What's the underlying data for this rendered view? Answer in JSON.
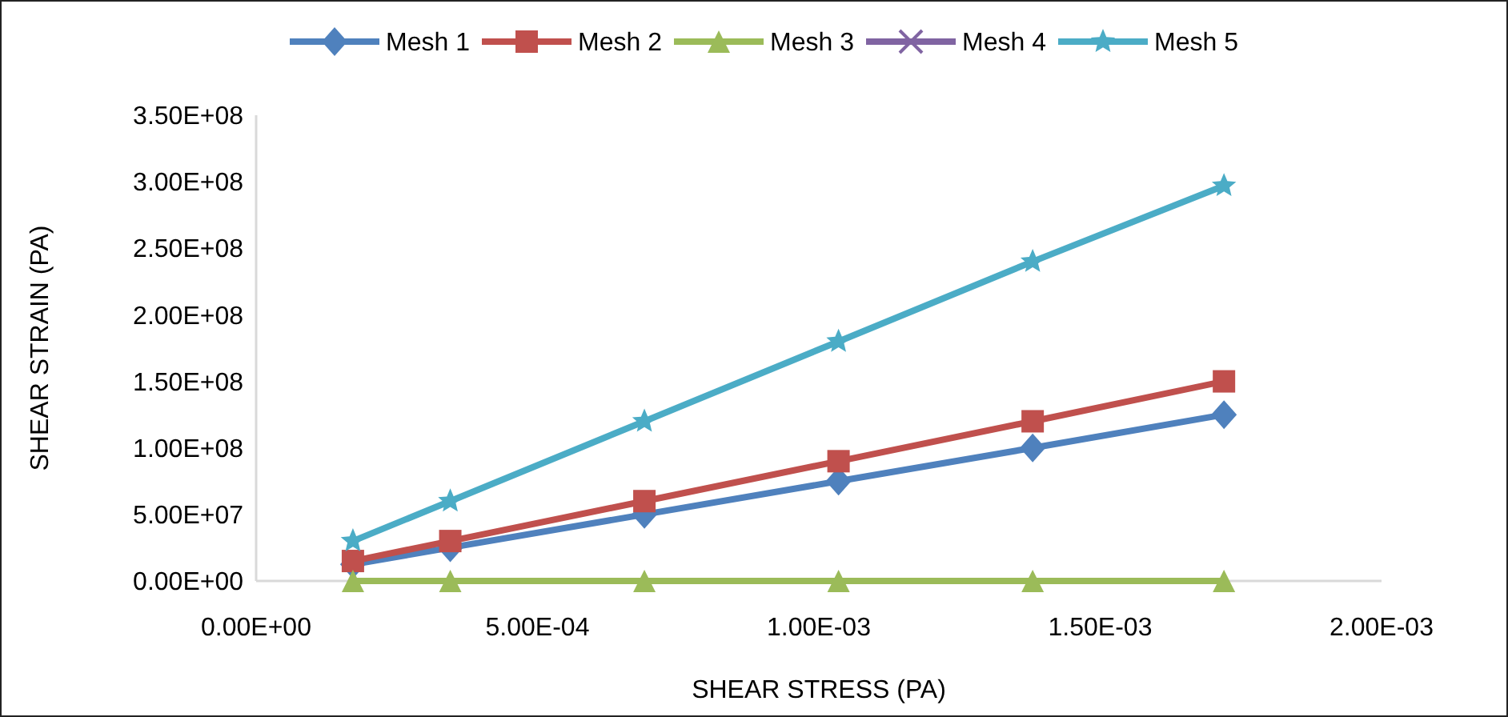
{
  "chart_data": {
    "type": "line",
    "xlabel": "SHEAR STRESS (PA)",
    "ylabel": "SHEAR STRAIN (PA)",
    "x": [
      0.000172,
      0.000345,
      0.00069,
      0.001035,
      0.00138,
      0.00172
    ],
    "xlim": [
      0,
      0.002
    ],
    "xticks": [
      {
        "value": 0,
        "label": "0.00E+00"
      },
      {
        "value": 0.0005,
        "label": "5.00E-04"
      },
      {
        "value": 0.001,
        "label": "1.00E-03"
      },
      {
        "value": 0.0015,
        "label": "1.50E-03"
      },
      {
        "value": 0.002,
        "label": "2.00E-03"
      }
    ],
    "ylim": [
      0,
      350000000
    ],
    "yticks": [
      {
        "value": 0,
        "label": "0.00E+00"
      },
      {
        "value": 50000000,
        "label": "5.00E+07"
      },
      {
        "value": 100000000,
        "label": "1.00E+08"
      },
      {
        "value": 150000000,
        "label": "1.50E+08"
      },
      {
        "value": 200000000,
        "label": "2.00E+08"
      },
      {
        "value": 250000000,
        "label": "2.50E+08"
      },
      {
        "value": 300000000,
        "label": "3.00E+08"
      },
      {
        "value": 350000000,
        "label": "3.50E+08"
      }
    ],
    "grid": false,
    "legend": "top",
    "line_style": "solid",
    "series": [
      {
        "name": "Mesh 1",
        "color": "#4f81bd",
        "marker": "diamond",
        "values": [
          12500000,
          25000000,
          50000000,
          75000000,
          100000000,
          125000000
        ]
      },
      {
        "name": "Mesh 2",
        "color": "#c0504d",
        "marker": "square",
        "values": [
          15000000,
          30000000,
          60000000,
          90000000,
          120000000,
          150000000
        ]
      },
      {
        "name": "Mesh 3",
        "color": "#9bbb59",
        "marker": "triangle",
        "values": [
          0,
          0,
          0,
          0,
          0,
          0
        ]
      },
      {
        "name": "Mesh 4",
        "color": "#8064a2",
        "marker": "cross",
        "values": [
          null,
          null,
          null,
          null,
          null,
          null
        ]
      },
      {
        "name": "Mesh 5",
        "color": "#4bacc6",
        "marker": "star",
        "values": [
          30000000,
          60000000,
          120000000,
          180000000,
          240000000,
          297000000
        ]
      }
    ]
  }
}
